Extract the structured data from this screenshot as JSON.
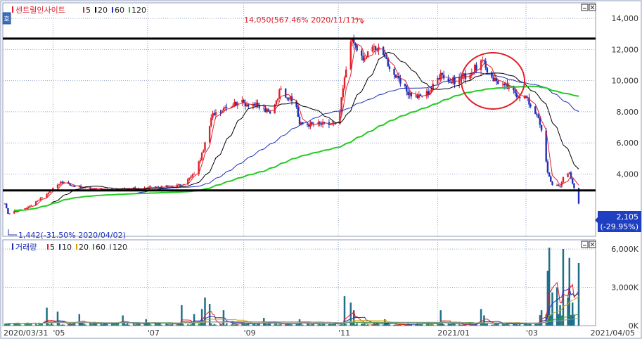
{
  "legend_top": {
    "stock_name": "센트럴인사이트",
    "ma": [
      {
        "label": "5",
        "color": "#e0202a"
      },
      {
        "label": "20",
        "color": "#000000"
      },
      {
        "label": "60",
        "color": "#1f2fb8"
      },
      {
        "label": "120",
        "color": "#22cc22"
      }
    ]
  },
  "legend_bottom": {
    "title": "거래량",
    "ma": [
      {
        "label": "5",
        "color": "#e0202a"
      },
      {
        "label": "10",
        "color": "#1f2fb8"
      },
      {
        "label": "20",
        "color": "#d7a000"
      },
      {
        "label": "60",
        "color": "#22aa22"
      },
      {
        "label": "120",
        "color": "#999999"
      }
    ]
  },
  "annotations": {
    "high": "14,050(567.46% 2020/11/11)",
    "low": "1,442(-31.50% 2020/04/02)",
    "current_price": "2,105",
    "current_change": "(-29.95%)"
  },
  "chart_data": [
    {
      "type": "candlestick",
      "title": "",
      "y_axis_side": "right",
      "ylim": [
        0,
        15000
      ],
      "yticks": [
        4000,
        6000,
        8000,
        10000,
        12000,
        14000
      ],
      "ytick_labels": [
        "4,000",
        "6,000",
        "8,000",
        "10,000",
        "12,000",
        "14,000"
      ],
      "grid": true,
      "x_labels": [
        "2020/03/31",
        "'05",
        "'07",
        "'09",
        "'11",
        "2021/01",
        "'03",
        "2021/04/05"
      ],
      "x_label_dates": [
        "2020-03-31",
        "2020-05-01",
        "2020-07-01",
        "2020-09-01",
        "2020-11-01",
        "2021-01-04",
        "2021-03-02",
        "2021-04-05"
      ],
      "high": {
        "date": "2020-11-11",
        "value": 14050
      },
      "low": {
        "date": "2020-04-02",
        "value": 1442
      },
      "last_close": 2105,
      "horizontal_lines": [
        12700,
        2950
      ],
      "close_series": [
        {
          "date": "2020-03-31",
          "value": 2100
        },
        {
          "date": "2020-04-02",
          "value": 1442
        },
        {
          "date": "2020-04-15",
          "value": 1900
        },
        {
          "date": "2020-04-28",
          "value": 2800
        },
        {
          "date": "2020-05-06",
          "value": 3500
        },
        {
          "date": "2020-05-20",
          "value": 3100
        },
        {
          "date": "2020-06-10",
          "value": 3000
        },
        {
          "date": "2020-06-30",
          "value": 3100
        },
        {
          "date": "2020-07-13",
          "value": 3200
        },
        {
          "date": "2020-07-23",
          "value": 3300
        },
        {
          "date": "2020-07-31",
          "value": 4000
        },
        {
          "date": "2020-08-06",
          "value": 5500
        },
        {
          "date": "2020-08-12",
          "value": 7900
        },
        {
          "date": "2020-08-20",
          "value": 8300
        },
        {
          "date": "2020-08-28",
          "value": 8600
        },
        {
          "date": "2020-09-07",
          "value": 8500
        },
        {
          "date": "2020-09-18",
          "value": 7900
        },
        {
          "date": "2020-09-25",
          "value": 9500
        },
        {
          "date": "2020-10-05",
          "value": 8300
        },
        {
          "date": "2020-10-07",
          "value": 7200
        },
        {
          "date": "2020-10-30",
          "value": 7200
        },
        {
          "date": "2020-11-02",
          "value": 8000
        },
        {
          "date": "2020-11-05",
          "value": 10200
        },
        {
          "date": "2020-11-09",
          "value": 12500
        },
        {
          "date": "2020-11-11",
          "value": 12400
        },
        {
          "date": "2020-11-17",
          "value": 11300
        },
        {
          "date": "2020-11-24",
          "value": 12200
        },
        {
          "date": "2020-12-01",
          "value": 11500
        },
        {
          "date": "2020-12-08",
          "value": 10200
        },
        {
          "date": "2020-12-15",
          "value": 9300
        },
        {
          "date": "2020-12-22",
          "value": 8900
        },
        {
          "date": "2020-12-30",
          "value": 9300
        },
        {
          "date": "2021-01-06",
          "value": 10500
        },
        {
          "date": "2021-01-12",
          "value": 9900
        },
        {
          "date": "2021-01-19",
          "value": 10200
        },
        {
          "date": "2021-01-26",
          "value": 10500
        },
        {
          "date": "2021-02-01",
          "value": 11300
        },
        {
          "date": "2021-02-08",
          "value": 10200
        },
        {
          "date": "2021-02-16",
          "value": 9700
        },
        {
          "date": "2021-02-23",
          "value": 9200
        },
        {
          "date": "2021-03-02",
          "value": 8900
        },
        {
          "date": "2021-03-09",
          "value": 7800
        },
        {
          "date": "2021-03-12",
          "value": 6800
        },
        {
          "date": "2021-03-16",
          "value": 4100
        },
        {
          "date": "2021-03-19",
          "value": 3300
        },
        {
          "date": "2021-03-24",
          "value": 3200
        },
        {
          "date": "2021-03-26",
          "value": 3800
        },
        {
          "date": "2021-03-30",
          "value": 4100
        },
        {
          "date": "2021-04-01",
          "value": 3400
        },
        {
          "date": "2021-04-05",
          "value": 2105
        }
      ],
      "series": [
        {
          "name": "5",
          "color": "#e0202a"
        },
        {
          "name": "20",
          "color": "#000000"
        },
        {
          "name": "60",
          "color": "#1f2fb8"
        },
        {
          "name": "120",
          "color": "#22cc22"
        }
      ]
    },
    {
      "type": "bar",
      "title": "",
      "ylim": [
        0,
        6500
      ],
      "yticks": [
        0,
        3000,
        6000
      ],
      "ytick_labels": [
        "0K",
        "3,000K",
        "6,000K"
      ],
      "volume_series": [
        {
          "date": "2020-04-27",
          "value": 1400
        },
        {
          "date": "2020-05-04",
          "value": 1100
        },
        {
          "date": "2020-05-18",
          "value": 900
        },
        {
          "date": "2020-06-15",
          "value": 800
        },
        {
          "date": "2020-06-30",
          "value": 500
        },
        {
          "date": "2020-07-23",
          "value": 1600
        },
        {
          "date": "2020-07-31",
          "value": 900
        },
        {
          "date": "2020-08-05",
          "value": 1300
        },
        {
          "date": "2020-08-07",
          "value": 2200
        },
        {
          "date": "2020-08-10",
          "value": 1700
        },
        {
          "date": "2020-08-19",
          "value": 1200
        },
        {
          "date": "2020-09-14",
          "value": 600
        },
        {
          "date": "2020-10-07",
          "value": 500
        },
        {
          "date": "2020-11-05",
          "value": 2300
        },
        {
          "date": "2020-11-09",
          "value": 1800
        },
        {
          "date": "2020-11-11",
          "value": 1200
        },
        {
          "date": "2020-12-01",
          "value": 500
        },
        {
          "date": "2021-01-06",
          "value": 1200
        },
        {
          "date": "2021-02-01",
          "value": 1300
        },
        {
          "date": "2021-02-03",
          "value": 800
        },
        {
          "date": "2021-03-12",
          "value": 1200
        },
        {
          "date": "2021-03-16",
          "value": 4300
        },
        {
          "date": "2021-03-17",
          "value": 6100
        },
        {
          "date": "2021-03-19",
          "value": 2600
        },
        {
          "date": "2021-03-22",
          "value": 3000
        },
        {
          "date": "2021-03-24",
          "value": 1600
        },
        {
          "date": "2021-03-26",
          "value": 6000
        },
        {
          "date": "2021-03-29",
          "value": 2200
        },
        {
          "date": "2021-03-30",
          "value": 5300
        },
        {
          "date": "2021-04-01",
          "value": 1800
        },
        {
          "date": "2021-04-05",
          "value": 4900
        }
      ]
    }
  ],
  "colors": {
    "up": "#e0202a",
    "down": "#1f2fb8",
    "accent": "#1f2fb8",
    "grid": "#9aa8c8",
    "highlight_circle": "#e0202a"
  }
}
